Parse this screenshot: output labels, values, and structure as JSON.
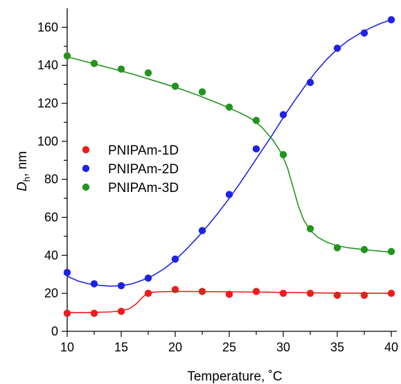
{
  "chart_data": {
    "type": "scatter",
    "title": "",
    "xlabel": "Temperature, ˚C",
    "ylabel_main": "D",
    "ylabel_sub": "h",
    "ylabel_unit": ", nm",
    "xlim": [
      10,
      40
    ],
    "ylim": [
      0,
      170
    ],
    "xticks": [
      10,
      15,
      20,
      25,
      30,
      35,
      40
    ],
    "yticks": [
      0,
      20,
      40,
      60,
      80,
      100,
      120,
      140,
      160
    ],
    "grid": false,
    "legend_placement": "left",
    "x": [
      10,
      12.5,
      15,
      17.5,
      20,
      22.5,
      25,
      27.5,
      30,
      32.5,
      35,
      37.5,
      40
    ],
    "series": [
      {
        "name": "PNIPAm-1D",
        "color": "#ee1c1c",
        "values": [
          9.5,
          9.5,
          10.5,
          20,
          22,
          21,
          19.5,
          21,
          20,
          20,
          19,
          19,
          20
        ],
        "fit": [
          [
            10,
            9.8
          ],
          [
            12,
            9.9
          ],
          [
            14,
            10.2
          ],
          [
            15,
            10.8
          ],
          [
            15.8,
            12
          ],
          [
            16.4,
            14.5
          ],
          [
            16.9,
            17.5
          ],
          [
            17.3,
            19.5
          ],
          [
            17.7,
            20.4
          ],
          [
            18.5,
            20.8
          ],
          [
            20,
            21
          ],
          [
            25,
            20.8
          ],
          [
            30,
            20.5
          ],
          [
            35,
            20.1
          ],
          [
            40,
            20
          ]
        ]
      },
      {
        "name": "PNIPAm-2D",
        "color": "#1e22e6",
        "values": [
          31,
          25,
          24,
          28,
          38,
          53,
          72,
          96,
          114,
          131,
          149,
          157,
          164
        ],
        "fit": [
          [
            10,
            29
          ],
          [
            11,
            26.5
          ],
          [
            12,
            25
          ],
          [
            13,
            24.2
          ],
          [
            14,
            23.8
          ],
          [
            15,
            24
          ],
          [
            16,
            25
          ],
          [
            17,
            27
          ],
          [
            18,
            29.5
          ],
          [
            19,
            33
          ],
          [
            20,
            37.5
          ],
          [
            21,
            43
          ],
          [
            22,
            49
          ],
          [
            23,
            55.5
          ],
          [
            24,
            62.5
          ],
          [
            25,
            70
          ],
          [
            26,
            78
          ],
          [
            27,
            86.5
          ],
          [
            28,
            95
          ],
          [
            29,
            103.5
          ],
          [
            30,
            112.5
          ],
          [
            31,
            121
          ],
          [
            32,
            129
          ],
          [
            33,
            136.5
          ],
          [
            34,
            143
          ],
          [
            35,
            148.5
          ],
          [
            36,
            153
          ],
          [
            37,
            156.5
          ],
          [
            38,
            159.5
          ],
          [
            39,
            162
          ],
          [
            40,
            164
          ]
        ]
      },
      {
        "name": "PNIPAm-3D",
        "color": "#22951e",
        "values": [
          145,
          141,
          138,
          136,
          129,
          126,
          118,
          111,
          93,
          54,
          44,
          43,
          42
        ],
        "fit": [
          [
            10,
            144.5
          ],
          [
            12,
            141.5
          ],
          [
            14,
            138.5
          ],
          [
            16,
            135.5
          ],
          [
            18,
            132
          ],
          [
            20,
            128.5
          ],
          [
            22,
            124.5
          ],
          [
            24,
            120
          ],
          [
            26,
            115
          ],
          [
            27,
            112
          ],
          [
            28,
            107.5
          ],
          [
            29,
            101
          ],
          [
            29.8,
            94
          ],
          [
            30.4,
            86
          ],
          [
            30.9,
            76
          ],
          [
            31.4,
            66
          ],
          [
            31.9,
            58.5
          ],
          [
            32.5,
            53
          ],
          [
            33.2,
            49.5
          ],
          [
            34,
            47
          ],
          [
            35,
            45
          ],
          [
            36,
            44
          ],
          [
            37,
            43.3
          ],
          [
            38,
            42.7
          ],
          [
            39,
            42.2
          ],
          [
            40,
            41.5
          ]
        ]
      }
    ]
  }
}
